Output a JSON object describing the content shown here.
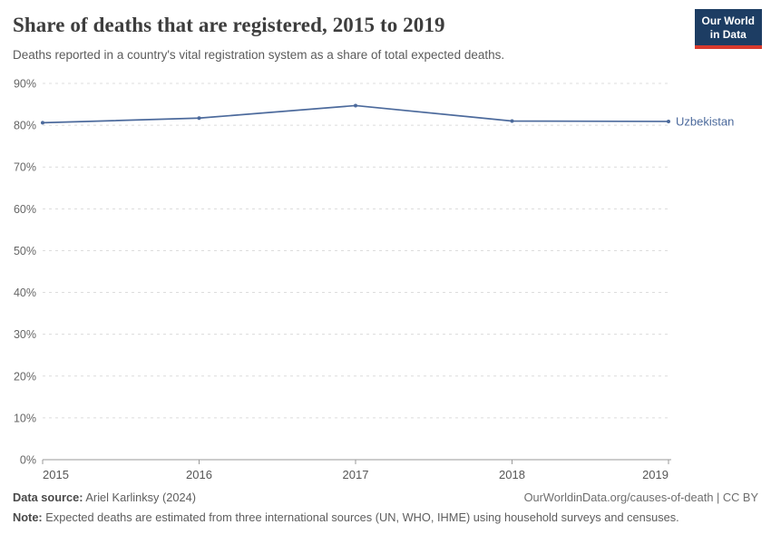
{
  "header": {
    "title": "Share of deaths that are registered, 2015 to 2019",
    "subtitle": "Deaths reported in a country's vital registration system as a share of total expected deaths.",
    "logo": {
      "line1": "Our World",
      "line2": "in Data",
      "bg_color": "#1d3d63",
      "accent_color": "#d93a2d"
    }
  },
  "chart_data": {
    "type": "line",
    "title": "Share of deaths that are registered, 2015 to 2019",
    "x": [
      2015,
      2016,
      2017,
      2018,
      2019
    ],
    "series": [
      {
        "name": "Uzbekistan",
        "values": [
          80.6,
          81.7,
          84.7,
          81.0,
          80.9
        ],
        "color": "#4C6A9C"
      }
    ],
    "xlabel": "",
    "ylabel": "",
    "ylim": [
      0,
      90
    ],
    "ytick_step": 10,
    "ytick_suffix": "%",
    "grid": "horizontal-dashed",
    "legend_position": "end-of-line-label",
    "axis_color": "#999999",
    "gridline_color": "#dcdcdc",
    "ytick_label_color": "#666666",
    "xtick_label_color": "#565656"
  },
  "footer": {
    "data_source_label": "Data source:",
    "data_source_value": "Ariel Karlinksy (2024)",
    "attribution": "OurWorldinData.org/causes-of-death | CC BY",
    "note_label": "Note:",
    "note_value": "Expected deaths are estimated from three international sources (UN, WHO, IHME) using household surveys and censuses."
  }
}
